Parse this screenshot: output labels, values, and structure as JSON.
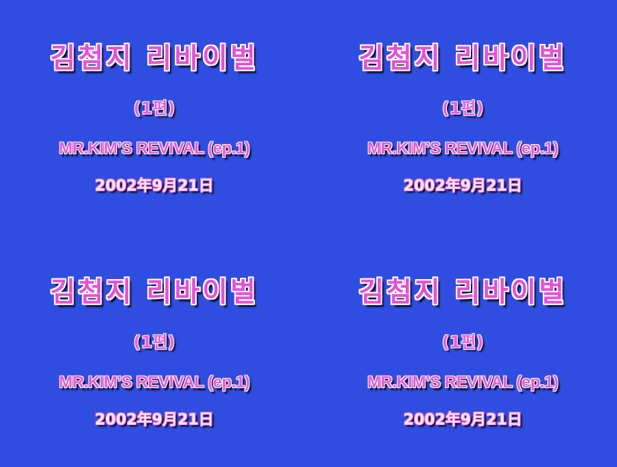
{
  "background_color": "#2f4de0",
  "text_color": "#e84fd6",
  "card": {
    "korean_title": "김첨지 리바이벌",
    "episode": "(1편)",
    "english_title": "MR.KIM’S REVIVAL (ep.1)",
    "air_date": "2002年9月21日"
  }
}
